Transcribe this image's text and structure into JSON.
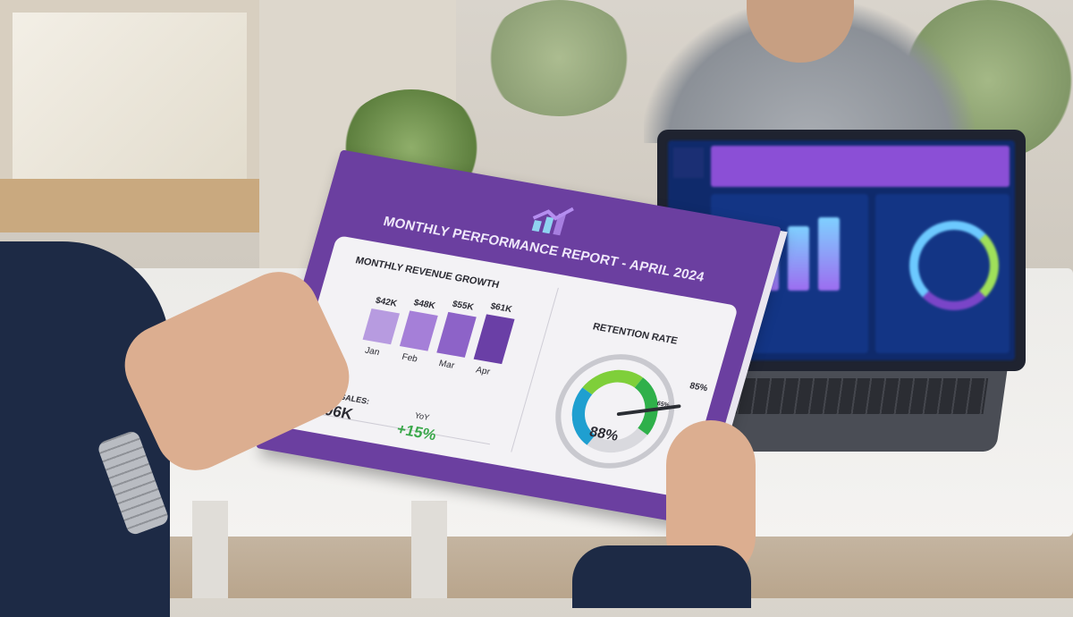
{
  "report": {
    "title": "MONTHLY PERFORMANCE REPORT - APRIL 2024",
    "revenue_section": {
      "heading": "MONTHLY REVENUE GROWTH",
      "bars": [
        {
          "month": "Jan",
          "value_label": "$42K",
          "value": 42,
          "color": "#b79be0"
        },
        {
          "month": "Feb",
          "value_label": "$48K",
          "value": 48,
          "color": "#a57fd8"
        },
        {
          "month": "Mar",
          "value_label": "$55K",
          "value": 55,
          "color": "#8d63c8"
        },
        {
          "month": "Apr",
          "value_label": "$61K",
          "value": 61,
          "color": "#6a3fa6"
        }
      ],
      "total_sales_label": "TOTAL SALES:",
      "total_sales_value": "$206K",
      "yoy_label": "YoY",
      "yoy_value": "+15%",
      "yoy_color": "#3aa84a"
    },
    "retention_section": {
      "heading": "RETENTION RATE",
      "value": "88%",
      "target_label": "85%",
      "min_label": "65%"
    }
  },
  "colors": {
    "cover": "#6b3fa0",
    "laptop_screen": "#0f2a6b",
    "laptop_header": "#8b4fd6"
  }
}
